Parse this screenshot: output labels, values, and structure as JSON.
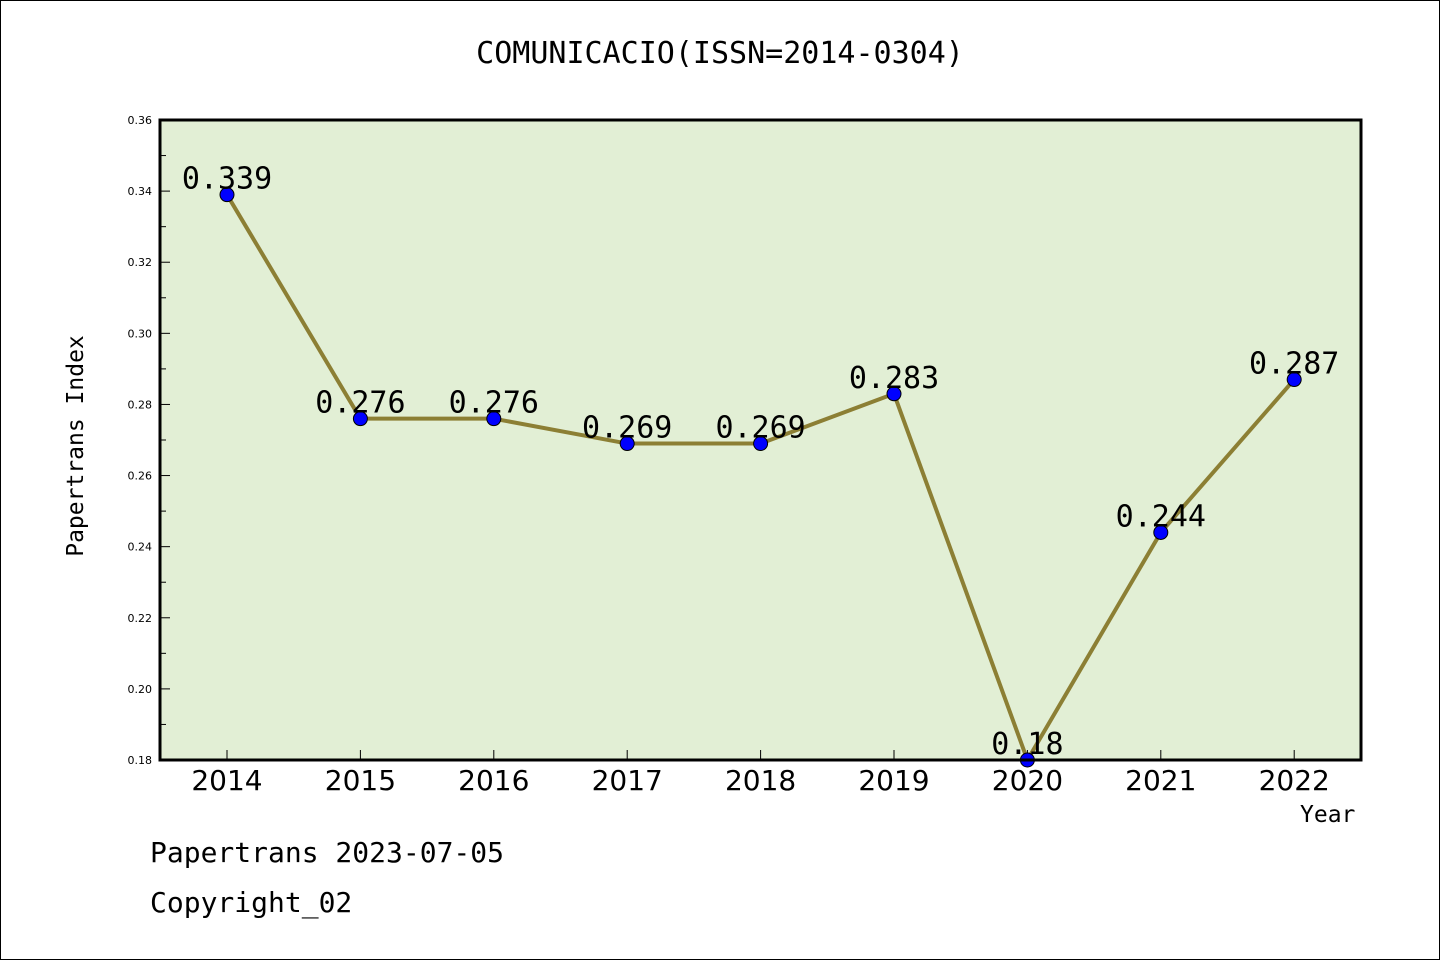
{
  "chart_data": {
    "type": "line",
    "title": "COMUNICACIO(ISSN=2014-0304)",
    "xlabel": "Year",
    "ylabel": "Papertrans Index",
    "categories": [
      "2014",
      "2015",
      "2016",
      "2017",
      "2018",
      "2019",
      "2020",
      "2021",
      "2022"
    ],
    "series": [
      {
        "values": [
          0.339,
          0.276,
          0.276,
          0.269,
          0.269,
          0.283,
          0.18,
          0.244,
          0.287
        ]
      }
    ],
    "data_labels": [
      "0.339",
      "0.276",
      "0.276",
      "0.269",
      "0.269",
      "0.283",
      "0.18",
      "0.244",
      "0.287"
    ],
    "ylim": [
      0.18,
      0.36
    ],
    "yticks": [
      "0.18",
      "0.20",
      "0.22",
      "0.24",
      "0.26",
      "0.28",
      "0.30",
      "0.32",
      "0.34",
      "0.36"
    ],
    "grid": false,
    "colors": {
      "plot_bg": "#e2efd5",
      "line": "#8c7f34",
      "marker": "#0000ff"
    }
  },
  "footer": {
    "line1": "Papertrans 2023-07-05",
    "line2": "Copyright_02"
  }
}
